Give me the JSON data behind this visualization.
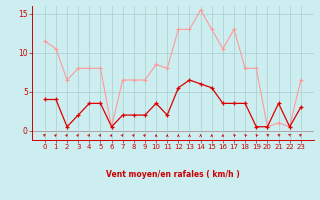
{
  "x": [
    0,
    1,
    2,
    3,
    4,
    5,
    6,
    7,
    8,
    9,
    10,
    11,
    12,
    13,
    14,
    15,
    16,
    17,
    18,
    19,
    20,
    21,
    22,
    23
  ],
  "rafales": [
    11.5,
    10.5,
    6.5,
    8.0,
    8.0,
    8.0,
    0.5,
    6.5,
    6.5,
    6.5,
    8.5,
    8.0,
    13.0,
    13.0,
    15.5,
    13.0,
    10.5,
    13.0,
    8.0,
    8.0,
    0.5,
    1.0,
    0.5,
    6.5
  ],
  "moyen": [
    4.0,
    4.0,
    0.5,
    2.0,
    3.5,
    3.5,
    0.5,
    2.0,
    2.0,
    2.0,
    3.5,
    2.0,
    5.5,
    6.5,
    6.0,
    5.5,
    3.5,
    3.5,
    3.5,
    0.5,
    0.5,
    3.5,
    0.5,
    3.0
  ],
  "bg_color": "#cceef0",
  "grid_color": "#aacccc",
  "line_color_rafales": "#ff9999",
  "line_color_moyen": "#dd0000",
  "xlabel": "Vent moyen/en rafales ( km/h )",
  "ylim": [
    -1.2,
    16
  ],
  "yticks": [
    0,
    5,
    10,
    15
  ],
  "xticks": [
    0,
    1,
    2,
    3,
    4,
    5,
    6,
    7,
    8,
    9,
    10,
    11,
    12,
    13,
    14,
    15,
    16,
    17,
    18,
    19,
    20,
    21,
    22,
    23
  ],
  "arrow_angles": [
    45,
    60,
    60,
    60,
    60,
    60,
    75,
    60,
    60,
    60,
    90,
    90,
    90,
    90,
    90,
    90,
    90,
    120,
    120,
    120,
    135,
    135,
    150,
    45
  ]
}
